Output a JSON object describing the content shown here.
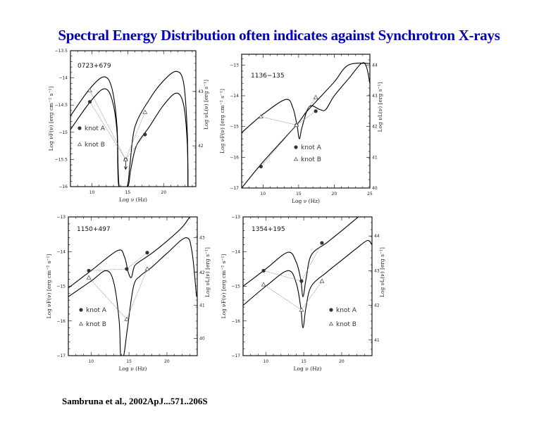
{
  "title": "Spectral Energy Distribution often indicates against Synchrotron X-rays",
  "footer": "Sambruna et al., 2002ApJ...571..206S",
  "colors": {
    "title": "#0000cc",
    "curve": "#000000",
    "data_line": "#888888"
  },
  "legend": {
    "knot_a": "knot A",
    "knot_b": "knot B",
    "marker_a": "filled-circle",
    "marker_b": "open-triangle"
  },
  "axis_labels": {
    "x": "Log ν (Hz)",
    "y_left": "Log νF(ν) [erg cm⁻² s⁻¹]",
    "y_right": "Log νL(ν) [erg s⁻¹]"
  },
  "chart_data": [
    {
      "type": "line",
      "title": "0723+679",
      "xlabel": "Log ν (Hz)",
      "ylabel": "Log νF(ν) [erg cm^-2 s^-1]",
      "ylabel_right": "Log νL(ν) [erg s^-1]",
      "xlim": [
        7,
        24.5
      ],
      "ylim": [
        -16,
        -13.5
      ],
      "xticks": [
        10,
        15,
        20
      ],
      "yticks": [
        -16,
        -15.5,
        -15,
        -14.5,
        -14,
        -13.5
      ],
      "ytick_labels": [
        "−16",
        "−15.5",
        "−15",
        "−14.5",
        "−14",
        "−13.5"
      ],
      "yticks_right": [
        {
          "value": 43,
          "at": -14.25
        },
        {
          "value": 42,
          "at": -15.25
        }
      ],
      "legend_position": "left-middle",
      "series": [
        {
          "name": "knot A",
          "marker": "circle",
          "x": [
            9.7,
            14.7,
            17.4
          ],
          "y": [
            -14.44,
            -15.5,
            -15.04
          ],
          "upper_limit_at": 14.7
        },
        {
          "name": "knot B",
          "marker": "triangle",
          "x": [
            9.7,
            14.7,
            17.4
          ],
          "y": [
            -14.23,
            -15.5,
            -14.63
          ]
        }
      ],
      "model_curves": [
        {
          "name": "model-upper",
          "x": [
            7,
            9.7,
            11.7,
            12.8,
            13.5,
            13.8,
            14.9,
            15.3,
            16,
            18,
            20,
            21.8,
            22.8,
            23.3,
            23.4
          ],
          "y": [
            -14.7,
            -14.2,
            -13.98,
            -14.2,
            -14.9,
            -16,
            -16,
            -15.6,
            -14.9,
            -14.4,
            -14.05,
            -13.88,
            -14.1,
            -15,
            -16
          ]
        },
        {
          "name": "model-lower",
          "x": [
            7,
            9.7,
            11.7,
            12.8,
            13.5,
            13.75,
            15.0,
            15.4,
            16.2,
            18,
            20,
            21.8,
            22.8,
            23.3,
            23.4
          ],
          "y": [
            -14.95,
            -14.45,
            -14.2,
            -14.4,
            -15.0,
            -16,
            -16,
            -15.7,
            -15.25,
            -14.9,
            -14.5,
            -14.28,
            -14.5,
            -15.2,
            -16
          ]
        }
      ]
    },
    {
      "type": "line",
      "title": "1136−135",
      "xlabel": "Log ν (Hz)",
      "ylabel": "Log νF(ν) [erg cm^-2 s^-1]",
      "ylabel_right": "Log νL(ν) [erg s^-1]",
      "xlim": [
        7,
        25
      ],
      "ylim": [
        -17,
        -12.65
      ],
      "xticks": [
        10,
        15,
        20,
        25
      ],
      "yticks": [
        -17,
        -16,
        -15,
        -14,
        -13
      ],
      "ytick_labels": [
        "−17",
        "−16",
        "−15",
        "−14",
        "−13"
      ],
      "yticks_right": [
        {
          "value": 44,
          "at": -13.0
        },
        {
          "value": 43,
          "at": -14.0
        },
        {
          "value": 42,
          "at": -15.0
        },
        {
          "value": 41,
          "at": -16.0
        },
        {
          "value": 40,
          "at": -17.0
        }
      ],
      "legend_position": "bottom-center",
      "series": [
        {
          "name": "knot A",
          "marker": "circle",
          "x": [
            9.7,
            14.7,
            17.4
          ],
          "y": [
            -16.3,
            -14.95,
            -14.5
          ]
        },
        {
          "name": "knot B",
          "marker": "triangle",
          "x": [
            9.7,
            14.7,
            17.4
          ],
          "y": [
            -14.68,
            -14.95,
            -14.05
          ]
        }
      ],
      "model_curves": [
        {
          "name": "model-upper",
          "x": [
            7,
            10,
            13.2,
            14.2,
            14.8,
            15.1,
            15.5,
            16.5,
            18,
            18.8,
            20,
            22,
            23.8,
            24.5,
            25
          ],
          "y": [
            -15.2,
            -14.6,
            -14.12,
            -14.4,
            -15.0,
            -15.4,
            -15.0,
            -14.35,
            -14.45,
            -14.45,
            -14.0,
            -13.45,
            -12.95,
            -13.05,
            -13.6
          ]
        },
        {
          "name": "model-lower",
          "x": [
            7,
            10,
            14.7,
            16,
            18,
            20,
            22,
            25
          ],
          "y": [
            -17,
            -16.15,
            -14.95,
            -14.55,
            -14.05,
            -13.55,
            -13.0,
            -12.95
          ]
        }
      ]
    },
    {
      "type": "line",
      "title": "1150+497",
      "xlabel": "Log ν (Hz)",
      "ylabel": "Log νF(ν) [erg cm^-2 s^-1]",
      "ylabel_right": "Log νL(ν) [erg s^-1]",
      "xlim": [
        7,
        24
      ],
      "ylim": [
        -17,
        -13
      ],
      "xticks": [
        10,
        15,
        20
      ],
      "yticks": [
        -17,
        -16,
        -15,
        -14,
        -13
      ],
      "ytick_labels": [
        "−17",
        "−16",
        "−15",
        "−14",
        "−13"
      ],
      "yticks_right": [
        {
          "value": 43,
          "at": -13.6
        },
        {
          "value": 42,
          "at": -14.6
        },
        {
          "value": 41,
          "at": -15.55
        },
        {
          "value": 40,
          "at": -16.5
        }
      ],
      "legend_position": "bottom-left",
      "series": [
        {
          "name": "knot A",
          "marker": "circle",
          "x": [
            9.7,
            14.7,
            17.4
          ],
          "y": [
            -14.55,
            -14.5,
            -14.03
          ]
        },
        {
          "name": "knot B",
          "marker": "triangle",
          "x": [
            9.7,
            14.7,
            17.4
          ],
          "y": [
            -14.75,
            -15.95,
            -14.5
          ]
        }
      ],
      "model_curves": [
        {
          "name": "model-upper",
          "x": [
            7,
            10,
            13.5,
            14.4,
            14.9,
            15.3,
            15.6,
            16.0,
            18,
            20,
            22,
            23.0
          ],
          "y": [
            -15.05,
            -14.55,
            -13.97,
            -14.15,
            -14.6,
            -14.75,
            -14.5,
            -14.35,
            -14.05,
            -13.7,
            -13.3,
            -13.0
          ]
        },
        {
          "name": "model-lower",
          "x": [
            7,
            10,
            12,
            13.0,
            13.7,
            13.9,
            14.3,
            14.8,
            15.6,
            16.5,
            18,
            20,
            22.5,
            23.3,
            23.9
          ],
          "y": [
            -15.3,
            -14.85,
            -14.55,
            -14.9,
            -16.0,
            -17,
            -17,
            -16.2,
            -15.0,
            -14.7,
            -14.45,
            -14.05,
            -13.6,
            -14.0,
            -15.3
          ]
        }
      ]
    },
    {
      "type": "line",
      "title": "1354+195",
      "xlabel": "Log ν (Hz)",
      "ylabel": "Log νF(ν) [erg cm^-2 s^-1]",
      "ylabel_right": "Log νL(ν) [erg s^-1]",
      "xlim": [
        7,
        24
      ],
      "ylim": [
        -17,
        -13
      ],
      "xticks": [
        10,
        15,
        20
      ],
      "yticks": [
        -17,
        -16,
        -15,
        -14,
        -13
      ],
      "ytick_labels": [
        "−17",
        "−16",
        "−15",
        "−14",
        "−13"
      ],
      "yticks_right": [
        {
          "value": 44,
          "at": -13.55
        },
        {
          "value": 43,
          "at": -14.55
        },
        {
          "value": 42,
          "at": -15.55
        },
        {
          "value": 41,
          "at": -16.55
        }
      ],
      "legend_position": "bottom-right",
      "series": [
        {
          "name": "knot A",
          "marker": "circle",
          "x": [
            9.7,
            14.7,
            17.4
          ],
          "y": [
            -14.55,
            -14.85,
            -13.75
          ]
        },
        {
          "name": "knot B",
          "marker": "triangle",
          "x": [
            9.7,
            14.7,
            17.4
          ],
          "y": [
            -14.95,
            -15.68,
            -14.85
          ]
        }
      ],
      "model_curves": [
        {
          "name": "model-upper",
          "x": [
            7,
            10,
            12.9,
            14.0,
            14.6,
            14.9,
            15.3,
            16.0,
            18,
            20,
            22.2
          ],
          "y": [
            -15.0,
            -14.5,
            -14.02,
            -14.3,
            -14.8,
            -15.3,
            -14.8,
            -14.1,
            -13.75,
            -13.4,
            -13.0
          ]
        },
        {
          "name": "model-lower",
          "x": [
            7,
            10,
            12.9,
            14.0,
            14.6,
            14.9,
            15.3,
            16.0,
            18,
            20,
            22,
            23.4,
            24
          ],
          "y": [
            -15.55,
            -15.0,
            -14.55,
            -14.9,
            -15.6,
            -16.2,
            -15.6,
            -15.0,
            -14.6,
            -14.25,
            -13.9,
            -13.68,
            -13.8
          ]
        }
      ]
    }
  ]
}
